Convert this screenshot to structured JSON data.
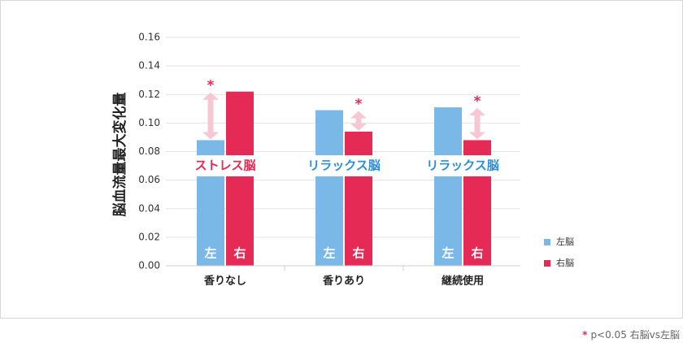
{
  "chart_data": {
    "type": "bar",
    "ylabel": "脳血流量最大変化量",
    "ylim": [
      0,
      0.16
    ],
    "yticks": [
      "0.00",
      "0.02",
      "0.04",
      "0.06",
      "0.08",
      "0.10",
      "0.12",
      "0.14",
      "0.16"
    ],
    "grid": true,
    "categories": [
      "香りなし",
      "香りあり",
      "継続使用"
    ],
    "series": [
      {
        "name": "左脳",
        "bar_label": "左",
        "color": "#7ab8e8",
        "values": [
          0.088,
          0.109,
          0.111
        ]
      },
      {
        "name": "右脳",
        "bar_label": "右",
        "color": "#e42a55",
        "values": [
          0.122,
          0.094,
          0.088
        ]
      }
    ],
    "annotations": [
      {
        "text": "ストレス脳",
        "color": "#e42a55",
        "star": "*"
      },
      {
        "text": "リラックス脳",
        "color": "#2a8fd8",
        "star": "*"
      },
      {
        "text": "リラックス脳",
        "color": "#2a8fd8",
        "star": "*"
      }
    ],
    "star_color": "#e42a55",
    "arrow_color": "#f7c8d3",
    "legend": {
      "position": "bottom-right"
    },
    "footnote": {
      "star": "*",
      "text": "p<0.05 右脳vs左脳"
    }
  }
}
